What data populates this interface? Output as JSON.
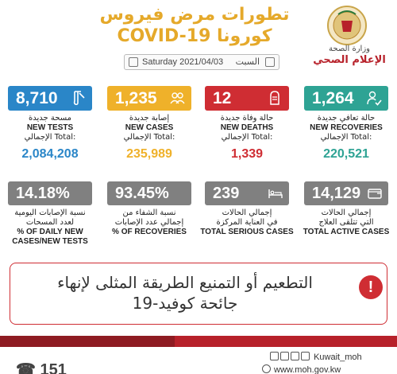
{
  "header": {
    "title_ar": "تطورات مرض فيروس",
    "title_en": "COVID-19 كورونا",
    "ministry_name": "وزارة الصحة",
    "ministry_dept": "الإعلام الصحي",
    "date": "Saturday 2021/04/03",
    "day_ar": "السبت"
  },
  "stats": {
    "new_tests": {
      "value": "8,710",
      "label_ar": "مسحة جديدة",
      "label_en": "NEW TESTS",
      "total_label": "الإجمالي Total:",
      "total": "2,084,208",
      "color": "#2a86c8",
      "icon": "test-tube-icon"
    },
    "new_cases": {
      "value": "1,235",
      "label_ar": "إصابة جديدة",
      "label_en": "NEW CASES",
      "total_label": "الإجمالي Total:",
      "total": "235,989",
      "color": "#efb12a",
      "icon": "people-icon"
    },
    "new_deaths": {
      "value": "12",
      "label_ar": "حالة وفاة جديدة",
      "label_en": "NEW DEATHS",
      "total_label": "الإجمالي Total:",
      "total": "1,339",
      "color": "#cf2d33",
      "icon": "tombstone-icon"
    },
    "new_recoveries": {
      "value": "1,264",
      "label_ar": "حالة تعافي جديدة",
      "label_en": "NEW RECOVERIES",
      "total_label": "الإجمالي Total:",
      "total": "220,521",
      "color": "#2ea394",
      "icon": "recovered-person-icon"
    }
  },
  "secondary": {
    "daily_rate": {
      "value": "14.18%",
      "label_ar_1": "نسبة الإصابات اليومية",
      "label_ar_2": "لعدد المسحات",
      "label_en_1": "% OF DAILY NEW",
      "label_en_2": "CASES/NEW TESTS"
    },
    "recovery_rate": {
      "value": "93.45%",
      "label_ar_1": "نسبة الشفاء من",
      "label_ar_2": "إجمالي عدد الإصابات",
      "label_en": "% OF RECOVERIES"
    },
    "serious": {
      "value": "239",
      "label_ar_1": "إجمالي الحالات",
      "label_ar_2": "في العناية المركزة",
      "label_en": "TOTAL SERIOUS CASES",
      "icon": "bed-icon"
    },
    "active": {
      "value": "14,129",
      "label_ar_1": "إجمالي الحالات",
      "label_ar_2": "التي تتلقى العلاج",
      "label_en": "TOTAL ACTIVE CASES",
      "icon": "wallet-icon"
    }
  },
  "message": {
    "line1": "التطعيم أو التمنيع الطريقة المثلى لإنهاء",
    "line2": "جائحة كوفيد-19",
    "alert_symbol": "!"
  },
  "footer": {
    "handle": "Kuwait_moh",
    "website": "www.moh.gov.kw",
    "hotline": "151"
  }
}
